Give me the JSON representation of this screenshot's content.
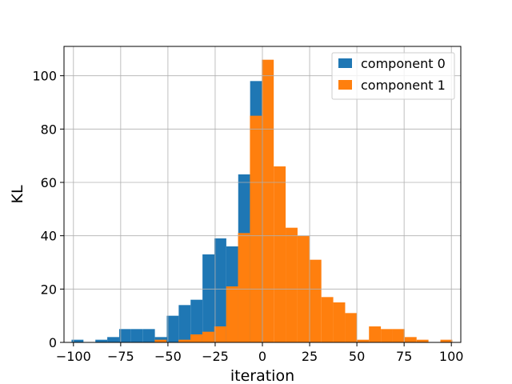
{
  "chart_data": {
    "type": "bar",
    "title": "",
    "xlabel": "iteration",
    "ylabel": "KL",
    "xlim": [
      -105,
      105
    ],
    "ylim": [
      0,
      111
    ],
    "grid": true,
    "legend_placement": "top-right",
    "x_ticks": [
      -100,
      -75,
      -50,
      -25,
      0,
      25,
      50,
      75,
      100
    ],
    "x_tick_labels": [
      "−100",
      "−75",
      "−50",
      "−25",
      "0",
      "25",
      "50",
      "75",
      "100"
    ],
    "y_ticks": [
      0,
      20,
      40,
      60,
      80,
      100
    ],
    "y_tick_labels": [
      "0",
      "20",
      "40",
      "60",
      "80",
      "100"
    ],
    "series": [
      {
        "name": "component 0",
        "color": "#1f77b4",
        "bins": [
          [
            -101,
            -94.7,
            1
          ],
          [
            -94.7,
            -88.4,
            0
          ],
          [
            -88.4,
            -82.1,
            1
          ],
          [
            -82.1,
            -75.8,
            2
          ],
          [
            -75.8,
            -69.5,
            5
          ],
          [
            -69.5,
            -63.2,
            5
          ],
          [
            -63.2,
            -56.9,
            5
          ],
          [
            -56.9,
            -50.6,
            2
          ],
          [
            -50.6,
            -44.3,
            10
          ],
          [
            -44.3,
            -38.0,
            14
          ],
          [
            -38.0,
            -31.7,
            16
          ],
          [
            -31.7,
            -25.4,
            33
          ],
          [
            -25.4,
            -19.1,
            39
          ],
          [
            -19.1,
            -12.8,
            36
          ],
          [
            -12.8,
            -6.5,
            63
          ],
          [
            -6.5,
            -0.2,
            98
          ]
        ]
      },
      {
        "name": "component 1",
        "color": "#ff7f0e",
        "bins": [
          [
            -57,
            -50.7,
            1
          ],
          [
            -50.7,
            -44.4,
            0
          ],
          [
            -44.4,
            -38.1,
            1
          ],
          [
            -38.1,
            -31.8,
            3
          ],
          [
            -31.8,
            -25.5,
            4
          ],
          [
            -25.5,
            -19.2,
            6
          ],
          [
            -19.2,
            -12.9,
            21
          ],
          [
            -12.9,
            -6.6,
            41
          ],
          [
            -6.6,
            -0.3,
            85
          ],
          [
            -0.3,
            6.0,
            106
          ],
          [
            6.0,
            12.3,
            66
          ],
          [
            12.3,
            18.6,
            43
          ],
          [
            18.6,
            24.9,
            40
          ],
          [
            24.9,
            31.2,
            31
          ],
          [
            31.2,
            37.5,
            17
          ],
          [
            37.5,
            43.8,
            15
          ],
          [
            43.8,
            50.1,
            11
          ],
          [
            50.1,
            56.4,
            1
          ],
          [
            56.4,
            62.7,
            6
          ],
          [
            62.7,
            69.0,
            5
          ],
          [
            69.0,
            75.3,
            5
          ],
          [
            75.3,
            81.6,
            2
          ],
          [
            81.6,
            87.9,
            1
          ],
          [
            87.9,
            94.2,
            0
          ],
          [
            94.2,
            100.5,
            1
          ]
        ]
      }
    ]
  }
}
